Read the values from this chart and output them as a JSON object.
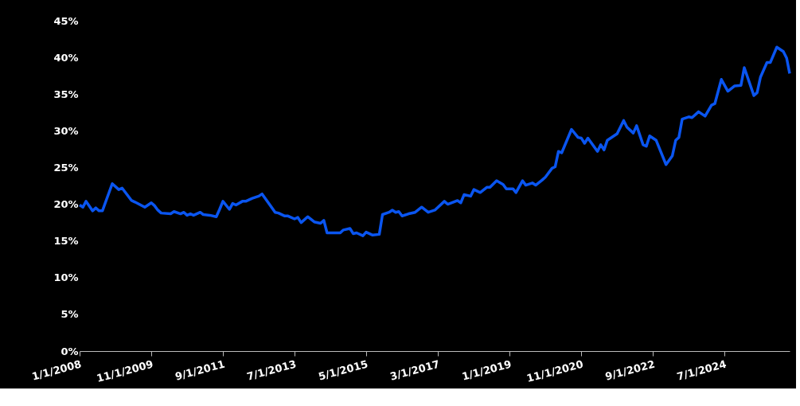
{
  "chart_data": {
    "type": "line",
    "x": [
      "2008-01",
      "2008-02",
      "2008-03",
      "2008-05",
      "2008-06",
      "2008-07",
      "2008-08",
      "2008-11",
      "2009-01",
      "2009-02",
      "2009-05",
      "2009-06",
      "2009-09",
      "2009-11",
      "2009-12",
      "2010-01",
      "2010-02",
      "2010-05",
      "2010-06",
      "2010-08",
      "2010-09",
      "2010-10",
      "2010-11",
      "2010-12",
      "2011-02",
      "2011-03",
      "2011-05",
      "2011-07",
      "2011-08",
      "2011-09",
      "2011-11",
      "2011-12",
      "2012-01",
      "2012-03",
      "2012-04",
      "2012-06",
      "2012-08",
      "2012-09",
      "2013-01",
      "2013-02",
      "2013-04",
      "2013-05",
      "2013-07",
      "2013-08",
      "2013-09",
      "2013-11",
      "2014-01",
      "2014-03",
      "2014-04",
      "2014-05",
      "2014-09",
      "2014-10",
      "2014-12",
      "2015-01",
      "2015-02",
      "2015-04",
      "2015-05",
      "2015-07",
      "2015-09",
      "2015-10",
      "2015-12",
      "2016-01",
      "2016-02",
      "2016-03",
      "2016-04",
      "2016-06",
      "2016-08",
      "2016-10",
      "2016-12",
      "2017-02",
      "2017-05",
      "2017-06",
      "2017-09",
      "2017-10",
      "2017-11",
      "2018-01",
      "2018-02",
      "2018-04",
      "2018-06",
      "2018-07",
      "2018-09",
      "2018-11",
      "2018-12",
      "2019-02",
      "2019-03",
      "2019-05",
      "2019-06",
      "2019-08",
      "2019-09",
      "2019-11",
      "2019-12",
      "2020-02",
      "2020-03",
      "2020-04",
      "2020-05",
      "2020-08",
      "2020-10",
      "2020-11",
      "2020-12",
      "2021-01",
      "2021-04",
      "2021-05",
      "2021-06",
      "2021-07",
      "2021-10",
      "2021-12",
      "2022-01",
      "2022-03",
      "2022-04",
      "2022-06",
      "2022-07",
      "2022-08",
      "2022-10",
      "2023-01",
      "2023-03",
      "2023-04",
      "2023-05",
      "2023-06",
      "2023-08",
      "2023-09",
      "2023-11",
      "2024-01",
      "2024-03",
      "2024-04",
      "2024-06",
      "2024-08",
      "2024-10",
      "2024-12",
      "2025-01",
      "2025-04",
      "2025-05",
      "2025-06",
      "2025-08",
      "2025-09",
      "2025-11",
      "2026-01",
      "2026-02",
      "2026-03"
    ],
    "series": [
      {
        "color": "#0a55f0",
        "values": [
          19.9,
          19.6,
          20.4,
          19.1,
          19.5,
          19.1,
          19.1,
          22.8,
          22.0,
          22.2,
          20.5,
          20.3,
          19.6,
          20.2,
          19.8,
          19.2,
          18.8,
          18.7,
          19.0,
          18.7,
          18.9,
          18.5,
          18.7,
          18.5,
          18.9,
          18.6,
          18.5,
          18.3,
          19.3,
          20.4,
          19.3,
          20.1,
          19.9,
          20.4,
          20.4,
          20.8,
          21.1,
          21.4,
          18.9,
          18.8,
          18.4,
          18.4,
          18.0,
          18.2,
          17.5,
          18.3,
          17.6,
          17.4,
          17.8,
          16.1,
          16.1,
          16.5,
          16.7,
          16.0,
          16.1,
          15.7,
          16.2,
          15.8,
          15.9,
          18.6,
          18.9,
          19.2,
          18.9,
          19.0,
          18.4,
          18.7,
          18.9,
          19.6,
          18.9,
          19.2,
          20.4,
          20.0,
          20.5,
          20.2,
          21.3,
          21.1,
          22.0,
          21.6,
          22.3,
          22.3,
          23.2,
          22.7,
          22.1,
          22.1,
          21.6,
          23.2,
          22.6,
          22.9,
          22.6,
          23.3,
          23.7,
          24.9,
          25.1,
          27.2,
          27.0,
          30.2,
          29.1,
          29.0,
          28.3,
          29.0,
          27.2,
          28.1,
          27.4,
          28.7,
          29.6,
          31.4,
          30.5,
          29.7,
          30.7,
          28.1,
          27.9,
          29.3,
          28.7,
          25.4,
          26.6,
          28.7,
          29.1,
          31.6,
          31.9,
          31.8,
          32.6,
          32.0,
          33.5,
          33.7,
          37.0,
          35.4,
          36.1,
          36.2,
          38.6,
          34.8,
          35.2,
          37.3,
          39.3,
          39.3,
          41.4,
          40.8,
          39.9,
          37.8
        ]
      }
    ],
    "xlim": [
      "2008-01",
      "2026-03"
    ],
    "xticks": [
      {
        "value": "2008-01",
        "label": "1/1/2008"
      },
      {
        "value": "2009-11",
        "label": "11/1/2009"
      },
      {
        "value": "2011-09",
        "label": "9/1/2011"
      },
      {
        "value": "2013-07",
        "label": "7/1/2013"
      },
      {
        "value": "2015-05",
        "label": "5/1/2015"
      },
      {
        "value": "2017-03",
        "label": "3/1/2017"
      },
      {
        "value": "2019-01",
        "label": "1/1/2019"
      },
      {
        "value": "2020-11",
        "label": "11/1/2020"
      },
      {
        "value": "2022-09",
        "label": "9/1/2022"
      },
      {
        "value": "2024-07",
        "label": "7/1/2024"
      }
    ],
    "ylim": [
      0,
      45
    ],
    "yticks": [
      {
        "value": 0,
        "label": "0%"
      },
      {
        "value": 5,
        "label": "5%"
      },
      {
        "value": 10,
        "label": "10%"
      },
      {
        "value": 15,
        "label": "15%"
      },
      {
        "value": 20,
        "label": "20%"
      },
      {
        "value": 25,
        "label": "25%"
      },
      {
        "value": 30,
        "label": "30%"
      },
      {
        "value": 35,
        "label": "35%"
      },
      {
        "value": 40,
        "label": "40%"
      },
      {
        "value": 45,
        "label": "45%"
      }
    ],
    "marker": "none",
    "line_style": "solid"
  }
}
